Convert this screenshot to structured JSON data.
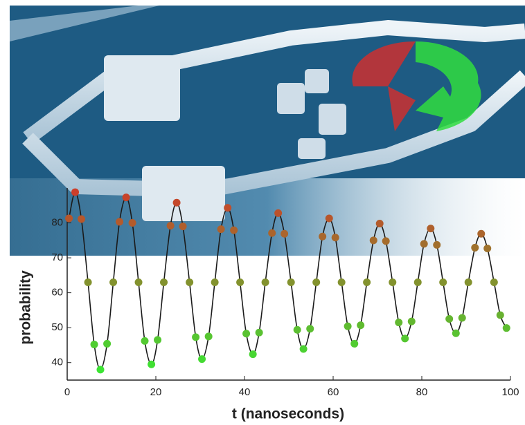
{
  "chart_data": {
    "type": "scatter-line",
    "xlabel": "t (nanoseconds)",
    "ylabel": "probability",
    "xlim": [
      0,
      100
    ],
    "ylim": [
      35,
      90
    ],
    "xticks": [
      0,
      20,
      40,
      60,
      80,
      100
    ],
    "yticks": [
      40,
      50,
      60,
      70,
      80
    ],
    "line_color": "#1a1a1a",
    "colormap": [
      "#33ee33",
      "#d03a2a"
    ],
    "x": [
      0.4,
      1.8,
      3.2,
      4.7,
      6.1,
      7.5,
      9.0,
      10.4,
      11.8,
      13.3,
      14.7,
      16.1,
      17.5,
      19.0,
      20.4,
      21.8,
      23.3,
      24.7,
      26.1,
      27.6,
      29.0,
      30.4,
      31.9,
      33.3,
      34.7,
      36.2,
      37.6,
      39.0,
      40.4,
      41.9,
      43.3,
      44.7,
      46.2,
      47.6,
      49.0,
      50.5,
      51.9,
      53.3,
      54.8,
      56.2,
      57.6,
      59.1,
      60.5,
      61.9,
      63.3,
      64.8,
      66.2,
      67.6,
      69.1,
      70.5,
      71.9,
      73.4,
      74.8,
      76.2,
      77.7,
      79.1,
      80.5,
      82.0,
      83.4,
      84.8,
      86.2,
      87.7,
      89.1,
      90.5,
      92.0,
      93.4,
      94.8,
      96.3,
      97.7,
      99.1
    ],
    "values": [
      81.3,
      88.8,
      81.1,
      63.0,
      45.2,
      38.0,
      45.4,
      63.0,
      80.3,
      87.3,
      80.0,
      63.0,
      46.2,
      39.5,
      46.5,
      63.0,
      79.2,
      85.8,
      79.0,
      63.0,
      47.3,
      41.0,
      47.5,
      63.0,
      78.2,
      84.3,
      77.9,
      63.0,
      48.3,
      42.4,
      48.6,
      63.0,
      77.1,
      82.8,
      76.9,
      63.0,
      49.4,
      43.9,
      49.7,
      63.0,
      76.1,
      81.3,
      75.8,
      63.0,
      50.4,
      45.4,
      50.7,
      63.0,
      75.0,
      79.8,
      74.8,
      63.0,
      51.5,
      46.9,
      51.8,
      63.0,
      74.0,
      78.4,
      73.7,
      63.0,
      52.5,
      48.4,
      52.8,
      63.0,
      72.9,
      76.9,
      72.7,
      63.0,
      53.6,
      49.9
    ]
  }
}
